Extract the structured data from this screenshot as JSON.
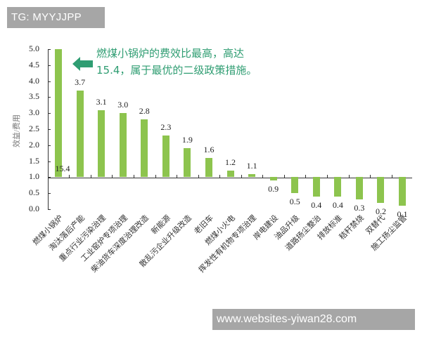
{
  "watermarks": {
    "top": "TG: MYYJJPP",
    "bottom": "www.websites-yiwan28.com"
  },
  "annotation": {
    "line1": "燃煤小锅炉的费效比最高，高达",
    "line2": "15.4，属于最优的二级政策措施。",
    "color": "#2f9d72"
  },
  "chart_data": {
    "type": "bar",
    "title": "",
    "xlabel": "",
    "ylabel": "效益/费用",
    "ylim": [
      0.0,
      5.0
    ],
    "baseline": 1.0,
    "yticks": [
      "5.0",
      "4.5",
      "4.0",
      "3.5",
      "3.0",
      "2.5",
      "2.0",
      "1.5",
      "1.0",
      "0.5",
      "0.0"
    ],
    "bar_color": "#8dc44e",
    "categories": [
      "燃煤小锅炉",
      "淘汰落后产能",
      "重点行业污染治理",
      "工业窑炉专项治理",
      "柴油货车深度治理改造",
      "新能源",
      "散乱污企业升级改造",
      "老旧车",
      "燃煤小火电",
      "挥发性有机物专项治理",
      "岸电建设",
      "油品升级",
      "道路扬尘整治",
      "排放标准",
      "秸秆禁烧",
      "双替代",
      "施工扬尘监管"
    ],
    "values": [
      15.4,
      3.7,
      3.1,
      3.0,
      2.8,
      2.3,
      1.9,
      1.6,
      1.2,
      1.1,
      0.9,
      0.5,
      0.4,
      0.4,
      0.3,
      0.2,
      0.1
    ],
    "value_labels": [
      "15.4",
      "3.7",
      "3.1",
      "3.0",
      "2.8",
      "2.3",
      "1.9",
      "1.6",
      "1.2",
      "1.1",
      "0.9",
      "0.5",
      "0.4",
      "0.4",
      "0.3",
      "0.2",
      "0.1"
    ],
    "grid": false,
    "legend": null,
    "note": "First bar (15.4) is truncated at the 5.0 axis limit"
  }
}
